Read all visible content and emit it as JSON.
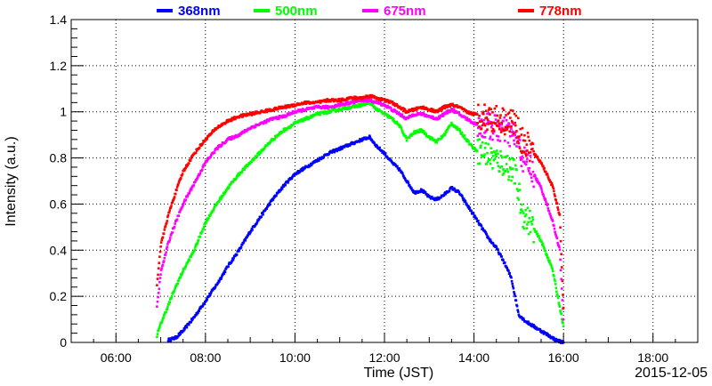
{
  "chart_data": {
    "type": "scatter",
    "title": "",
    "xlabel": "Time (JST)",
    "ylabel": "Intensity (a.u.)",
    "date_label": "2015-12-05",
    "xlim": [
      "05:00",
      "19:00"
    ],
    "ylim": [
      0,
      1.4
    ],
    "x_ticks": [
      "06:00",
      "08:00",
      "10:00",
      "12:00",
      "14:00",
      "16:00",
      "18:00"
    ],
    "y_ticks": [
      "0",
      "0.2",
      "0.4",
      "0.6",
      "0.8",
      "1",
      "1.2",
      "1.4"
    ],
    "grid": true,
    "legend_position": "top",
    "series": [
      {
        "name": "368nm",
        "color": "#0000ff",
        "points": [
          [
            "07:10",
            0.01
          ],
          [
            "07:20",
            0.02
          ],
          [
            "07:30",
            0.05
          ],
          [
            "07:45",
            0.11
          ],
          [
            "08:00",
            0.18
          ],
          [
            "08:15",
            0.25
          ],
          [
            "08:30",
            0.33
          ],
          [
            "08:45",
            0.4
          ],
          [
            "09:00",
            0.48
          ],
          [
            "09:15",
            0.55
          ],
          [
            "09:30",
            0.62
          ],
          [
            "09:45",
            0.68
          ],
          [
            "10:00",
            0.73
          ],
          [
            "10:15",
            0.76
          ],
          [
            "10:30",
            0.79
          ],
          [
            "10:45",
            0.82
          ],
          [
            "11:00",
            0.84
          ],
          [
            "11:15",
            0.86
          ],
          [
            "11:30",
            0.88
          ],
          [
            "11:40",
            0.89
          ],
          [
            "11:50",
            0.85
          ],
          [
            "12:00",
            0.82
          ],
          [
            "12:10",
            0.78
          ],
          [
            "12:20",
            0.75
          ],
          [
            "12:30",
            0.7
          ],
          [
            "12:40",
            0.65
          ],
          [
            "12:50",
            0.66
          ],
          [
            "13:00",
            0.63
          ],
          [
            "13:10",
            0.62
          ],
          [
            "13:20",
            0.64
          ],
          [
            "13:30",
            0.67
          ],
          [
            "13:40",
            0.65
          ],
          [
            "13:50",
            0.6
          ],
          [
            "14:00",
            0.55
          ],
          [
            "14:10",
            0.5
          ],
          [
            "14:20",
            0.45
          ],
          [
            "14:30",
            0.41
          ],
          [
            "14:40",
            0.35
          ],
          [
            "14:50",
            0.28
          ],
          [
            "15:00",
            0.12
          ],
          [
            "15:10",
            0.09
          ],
          [
            "15:20",
            0.07
          ],
          [
            "15:30",
            0.05
          ],
          [
            "15:40",
            0.03
          ],
          [
            "15:50",
            0.01
          ],
          [
            "16:00",
            0.0
          ]
        ]
      },
      {
        "name": "500nm",
        "color": "#00ff00",
        "points": [
          [
            "06:55",
            0.03
          ],
          [
            "07:00",
            0.08
          ],
          [
            "07:10",
            0.16
          ],
          [
            "07:20",
            0.24
          ],
          [
            "07:30",
            0.31
          ],
          [
            "07:45",
            0.4
          ],
          [
            "08:00",
            0.52
          ],
          [
            "08:15",
            0.6
          ],
          [
            "08:30",
            0.67
          ],
          [
            "08:45",
            0.73
          ],
          [
            "09:00",
            0.78
          ],
          [
            "09:15",
            0.83
          ],
          [
            "09:30",
            0.88
          ],
          [
            "09:45",
            0.92
          ],
          [
            "10:00",
            0.95
          ],
          [
            "10:15",
            0.97
          ],
          [
            "10:30",
            0.99
          ],
          [
            "10:45",
            1.0
          ],
          [
            "11:00",
            1.01
          ],
          [
            "11:15",
            1.02
          ],
          [
            "11:30",
            1.03
          ],
          [
            "11:40",
            1.04
          ],
          [
            "11:50",
            1.01
          ],
          [
            "12:00",
            0.99
          ],
          [
            "12:10",
            0.97
          ],
          [
            "12:20",
            0.94
          ],
          [
            "12:30",
            0.88
          ],
          [
            "12:40",
            0.91
          ],
          [
            "12:50",
            0.92
          ],
          [
            "13:00",
            0.89
          ],
          [
            "13:10",
            0.87
          ],
          [
            "13:20",
            0.9
          ],
          [
            "13:30",
            0.95
          ],
          [
            "13:40",
            0.92
          ],
          [
            "13:50",
            0.88
          ],
          [
            "14:00",
            0.84
          ],
          [
            "14:15",
            0.82
          ],
          [
            "14:30",
            0.79
          ],
          [
            "14:45",
            0.77
          ],
          [
            "14:55",
            0.73
          ],
          [
            "15:05",
            0.56
          ],
          [
            "15:15",
            0.52
          ],
          [
            "15:30",
            0.44
          ],
          [
            "15:45",
            0.32
          ],
          [
            "16:00",
            0.07
          ]
        ]
      },
      {
        "name": "675nm",
        "color": "#ff00ff",
        "points": [
          [
            "06:55",
            0.15
          ],
          [
            "07:00",
            0.3
          ],
          [
            "07:10",
            0.43
          ],
          [
            "07:20",
            0.52
          ],
          [
            "07:30",
            0.6
          ],
          [
            "07:45",
            0.69
          ],
          [
            "08:00",
            0.78
          ],
          [
            "08:15",
            0.84
          ],
          [
            "08:30",
            0.88
          ],
          [
            "08:45",
            0.9
          ],
          [
            "09:00",
            0.93
          ],
          [
            "09:15",
            0.95
          ],
          [
            "09:30",
            0.97
          ],
          [
            "09:45",
            0.98
          ],
          [
            "10:00",
            1.0
          ],
          [
            "10:15",
            1.01
          ],
          [
            "10:30",
            1.02
          ],
          [
            "10:45",
            1.02
          ],
          [
            "11:00",
            1.03
          ],
          [
            "11:15",
            1.04
          ],
          [
            "11:30",
            1.05
          ],
          [
            "11:40",
            1.05
          ],
          [
            "11:50",
            1.04
          ],
          [
            "12:00",
            1.03
          ],
          [
            "12:10",
            1.01
          ],
          [
            "12:20",
            0.99
          ],
          [
            "12:30",
            0.97
          ],
          [
            "12:40",
            0.99
          ],
          [
            "12:50",
            0.99
          ],
          [
            "13:00",
            0.98
          ],
          [
            "13:10",
            0.97
          ],
          [
            "13:20",
            0.99
          ],
          [
            "13:30",
            1.01
          ],
          [
            "13:40",
            0.99
          ],
          [
            "13:50",
            0.97
          ],
          [
            "14:00",
            0.95
          ],
          [
            "14:15",
            0.94
          ],
          [
            "14:30",
            0.93
          ],
          [
            "14:45",
            0.91
          ],
          [
            "14:55",
            0.89
          ],
          [
            "15:05",
            0.8
          ],
          [
            "15:15",
            0.76
          ],
          [
            "15:30",
            0.67
          ],
          [
            "15:45",
            0.53
          ],
          [
            "15:55",
            0.4
          ],
          [
            "16:00",
            0.1
          ]
        ]
      },
      {
        "name": "778nm",
        "color": "#ff0000",
        "points": [
          [
            "06:55",
            0.25
          ],
          [
            "07:00",
            0.42
          ],
          [
            "07:10",
            0.55
          ],
          [
            "07:20",
            0.65
          ],
          [
            "07:30",
            0.74
          ],
          [
            "07:45",
            0.82
          ],
          [
            "08:00",
            0.88
          ],
          [
            "08:15",
            0.93
          ],
          [
            "08:30",
            0.96
          ],
          [
            "08:45",
            0.98
          ],
          [
            "09:00",
            0.99
          ],
          [
            "09:15",
            1.0
          ],
          [
            "09:30",
            1.01
          ],
          [
            "09:45",
            1.02
          ],
          [
            "10:00",
            1.03
          ],
          [
            "10:15",
            1.04
          ],
          [
            "10:30",
            1.04
          ],
          [
            "10:45",
            1.05
          ],
          [
            "11:00",
            1.05
          ],
          [
            "11:15",
            1.06
          ],
          [
            "11:30",
            1.06
          ],
          [
            "11:40",
            1.07
          ],
          [
            "11:50",
            1.06
          ],
          [
            "12:00",
            1.05
          ],
          [
            "12:10",
            1.04
          ],
          [
            "12:20",
            1.02
          ],
          [
            "12:30",
            1.0
          ],
          [
            "12:40",
            1.01
          ],
          [
            "12:50",
            1.02
          ],
          [
            "13:00",
            1.01
          ],
          [
            "13:10",
            1.0
          ],
          [
            "13:20",
            1.02
          ],
          [
            "13:30",
            1.03
          ],
          [
            "13:40",
            1.02
          ],
          [
            "13:50",
            1.0
          ],
          [
            "14:00",
            0.99
          ],
          [
            "14:15",
            0.98
          ],
          [
            "14:30",
            0.97
          ],
          [
            "14:45",
            0.96
          ],
          [
            "14:55",
            0.95
          ],
          [
            "15:05",
            0.87
          ],
          [
            "15:15",
            0.84
          ],
          [
            "15:30",
            0.78
          ],
          [
            "15:45",
            0.68
          ],
          [
            "15:55",
            0.55
          ],
          [
            "16:00",
            0.15
          ]
        ]
      }
    ]
  }
}
